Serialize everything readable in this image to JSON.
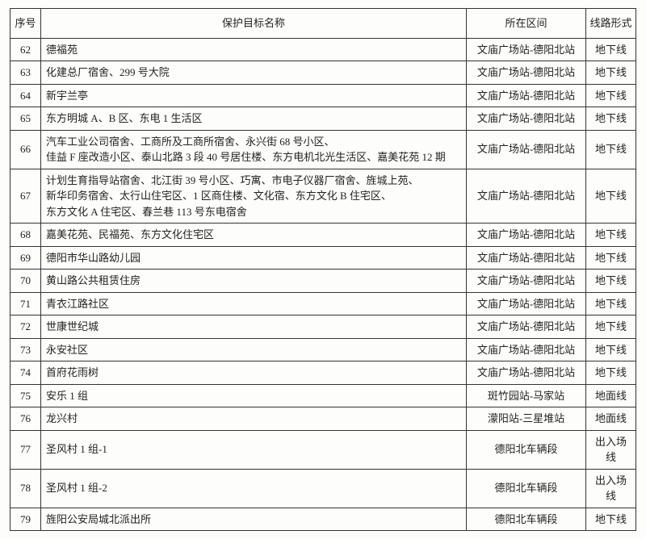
{
  "table": {
    "headers": {
      "seq": "序号",
      "name": "保护目标名称",
      "section": "所在区间",
      "route": "线路形式"
    },
    "rows": [
      {
        "seq": "62",
        "name": "德福苑",
        "section": "文庙广场站-德阳北站",
        "route": "地下线"
      },
      {
        "seq": "63",
        "name": "化建总厂宿舍、299 号大院",
        "section": "文庙广场站-德阳北站",
        "route": "地下线"
      },
      {
        "seq": "64",
        "name": "新宇兰亭",
        "section": "文庙广场站-德阳北站",
        "route": "地下线"
      },
      {
        "seq": "65",
        "name": "东方明城 A、B 区、东电 1 生活区",
        "section": "文庙广场站-德阳北站",
        "route": "地下线"
      },
      {
        "seq": "66",
        "name": "汽车工业公司宿舍、工商所及工商所宿舍、永兴街 68 号小区、\n佳益 F 座改造小区、泰山北路 3 段 40 号居住楼、东方电机北光生活区、嘉美花苑 12 期",
        "section": "文庙广场站-德阳北站",
        "route": "地下线"
      },
      {
        "seq": "67",
        "name": "计划生育指导站宿舍、北江街 39 号小区、巧寓、市电子仪器厂宿舍、旌城上苑、\n新华印务宿舍、太行山住宅区、1 区商住楼、文化宿、东方文化 B 住宅区、\n东方文化 A 住宅区、春兰巷 113 号东电宿舍",
        "section": "文庙广场站-德阳北站",
        "route": "地下线"
      },
      {
        "seq": "68",
        "name": "嘉美花苑、民福苑、东方文化住宅区",
        "section": "文庙广场站-德阳北站",
        "route": "地下线"
      },
      {
        "seq": "69",
        "name": "德阳市华山路幼儿园",
        "section": "文庙广场站-德阳北站",
        "route": "地下线"
      },
      {
        "seq": "70",
        "name": "黄山路公共租赁住房",
        "section": "文庙广场站-德阳北站",
        "route": "地下线"
      },
      {
        "seq": "71",
        "name": "青衣江路社区",
        "section": "文庙广场站-德阳北站",
        "route": "地下线"
      },
      {
        "seq": "72",
        "name": "世康世纪城",
        "section": "文庙广场站-德阳北站",
        "route": "地下线"
      },
      {
        "seq": "73",
        "name": "永安社区",
        "section": "文庙广场站-德阳北站",
        "route": "地下线"
      },
      {
        "seq": "74",
        "name": "首府花雨树",
        "section": "文庙广场站-德阳北站",
        "route": "地下线"
      },
      {
        "seq": "75",
        "name": "安乐 1 组",
        "section": "斑竹园站-马家站",
        "route": "地面线"
      },
      {
        "seq": "76",
        "name": "龙兴村",
        "section": "濛阳站-三星堆站",
        "route": "地面线"
      },
      {
        "seq": "77",
        "name": "圣风村 1 组-1",
        "section": "德阳北车辆段",
        "route": "出入场线"
      },
      {
        "seq": "78",
        "name": "圣风村 1 组-2",
        "section": "德阳北车辆段",
        "route": "出入场线"
      },
      {
        "seq": "79",
        "name": "旌阳公安局城北派出所",
        "section": "德阳北车辆段",
        "route": "地下线"
      }
    ]
  }
}
